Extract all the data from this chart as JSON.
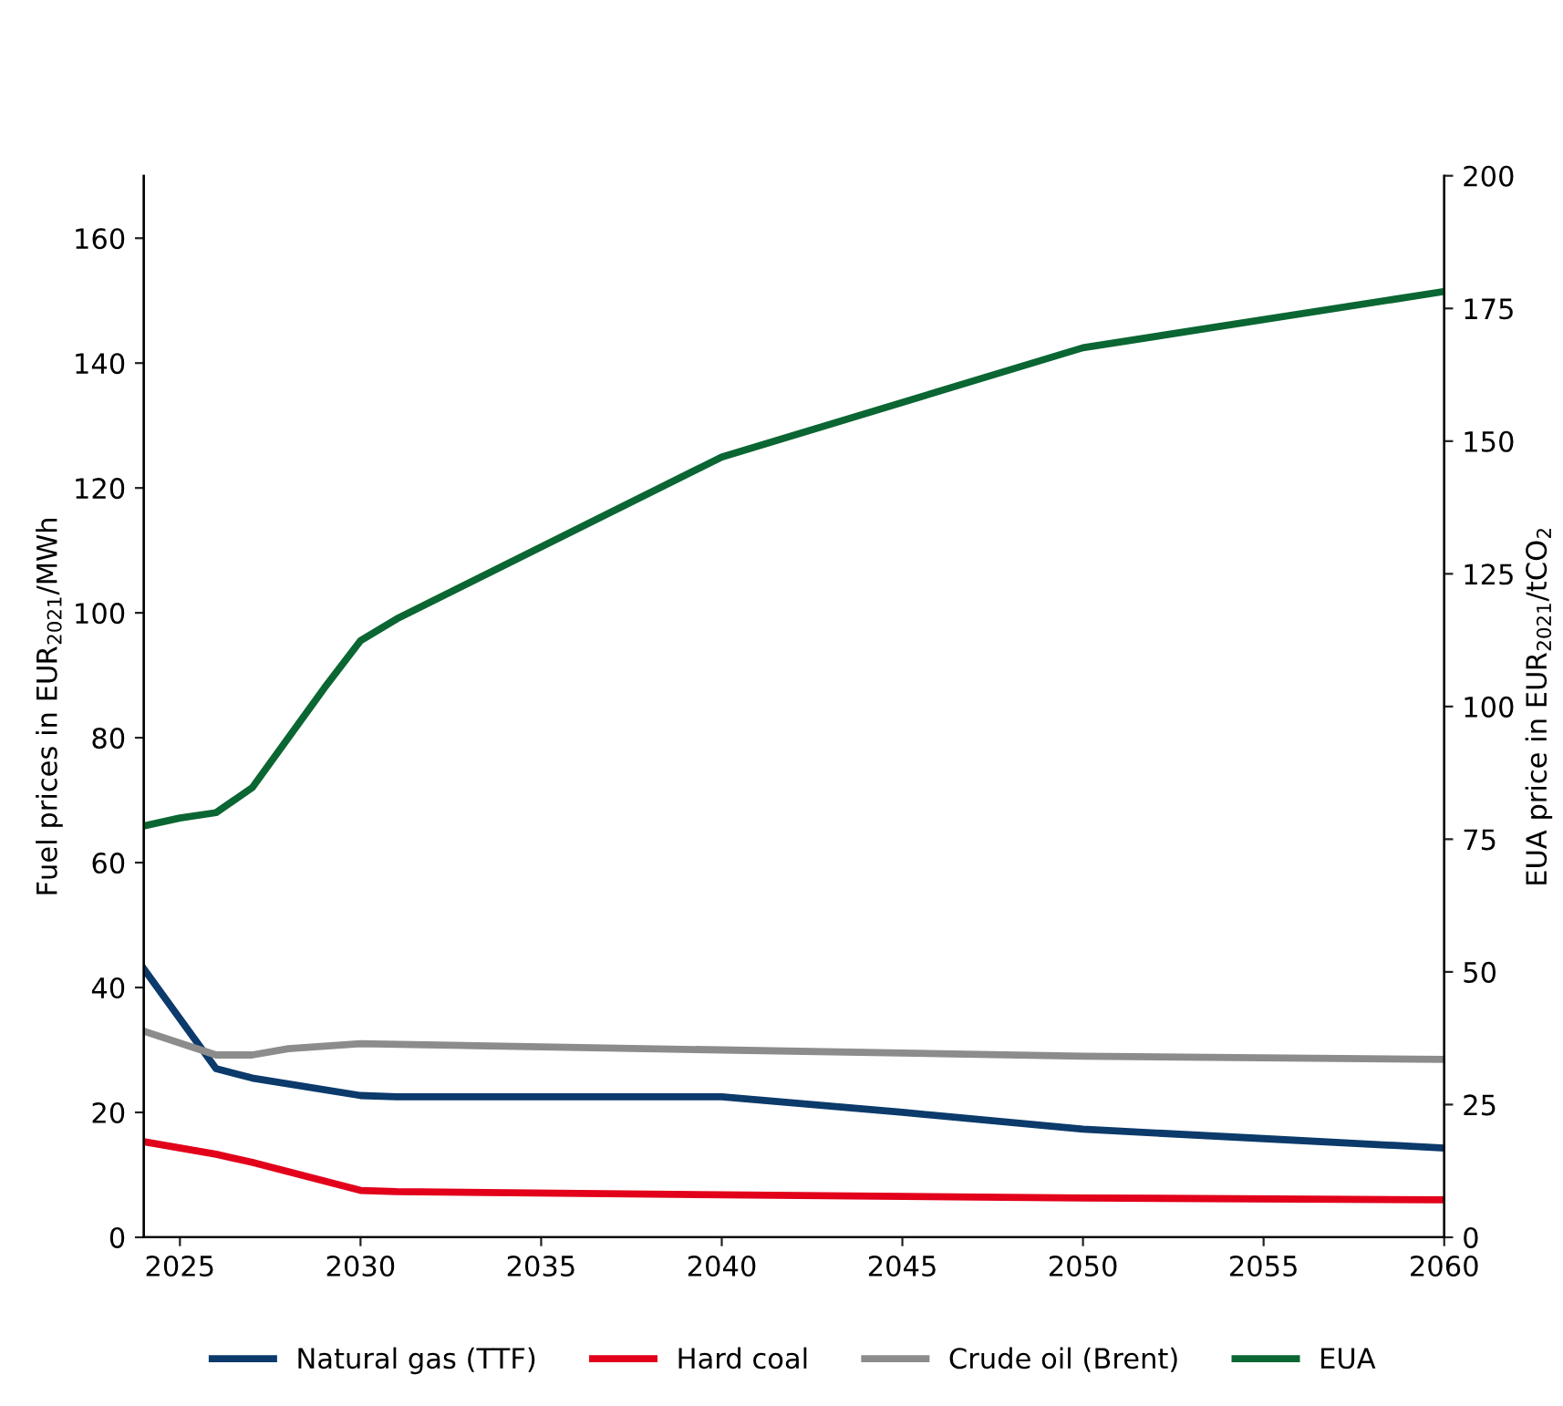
{
  "chart_data": {
    "type": "line",
    "ylabel": "Fuel prices in EUR$_{2021}$/MWh",
    "y2label": "EUA price in EUR$_{2021}$/tCO$_{2}$",
    "series": [
      {
        "name": "Natural gas (TTF)",
        "color": "#0b3a6b",
        "x": [
          2024,
          2026,
          2027,
          2030,
          2031,
          2040,
          2045,
          2050,
          2055,
          2060
        ],
        "values": [
          43,
          27,
          25.5,
          22.7,
          22.5,
          22.5,
          20,
          17.3,
          15.8,
          14.3
        ]
      },
      {
        "name": "Hard coal",
        "color": "#e2001a",
        "x": [
          2024,
          2026,
          2027,
          2030,
          2031,
          2040,
          2050,
          2060
        ],
        "values": [
          15.3,
          13.3,
          12,
          7.5,
          7.3,
          6.8,
          6.3,
          6.0
        ]
      },
      {
        "name": "Crude oil (Brent)",
        "color": "#8c8c8c",
        "x": [
          2024,
          2026,
          2027,
          2028,
          2030,
          2040,
          2050,
          2060
        ],
        "values": [
          33,
          29.2,
          29.2,
          30.2,
          31,
          30,
          29,
          28.5
        ]
      },
      {
        "name": "EUA",
        "color": "#0a6632",
        "axis": "y2",
        "x": [
          2024,
          2025,
          2026,
          2027,
          2029,
          2030,
          2031,
          2040,
          2050,
          2060
        ],
        "values": [
          77.5,
          79,
          80,
          84.7,
          103.5,
          112.4,
          116.5,
          147,
          167.6,
          178.2
        ]
      }
    ],
    "xlim": [
      2024,
      2060
    ],
    "xticks": [
      2025,
      2030,
      2035,
      2040,
      2045,
      2050,
      2055,
      2060
    ],
    "ylim": [
      0,
      170
    ],
    "yticks": [
      0,
      20,
      40,
      60,
      80,
      100,
      120,
      140,
      160
    ],
    "y2lim": [
      0,
      200
    ],
    "y2ticks": [
      0,
      25,
      50,
      75,
      100,
      125,
      150,
      175,
      200
    ],
    "grid": false,
    "legend": "bottom",
    "line_style": "solid",
    "marker": "none"
  }
}
